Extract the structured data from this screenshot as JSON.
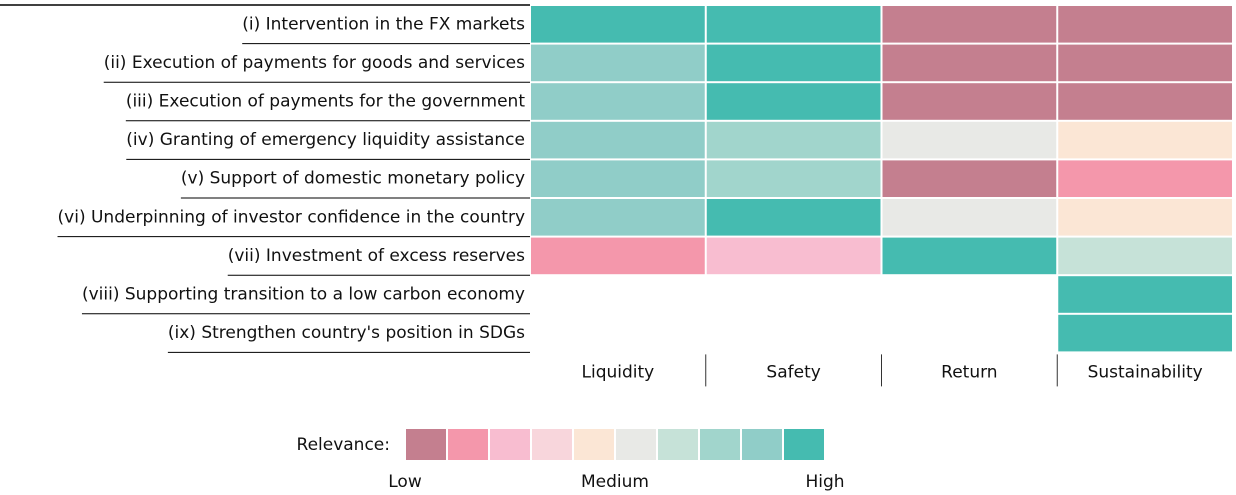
{
  "chart_data": {
    "type": "heatmap",
    "rows": [
      "(i) Intervention in the FX markets",
      "(ii) Execution of payments for goods and services",
      "(iii) Execution of payments for the government",
      "(iv) Granting of emergency liquidity assistance",
      "(v) Support of domestic monetary policy",
      "(vi) Underpinning of investor confidence in the country",
      "(vii) Investment of excess reserves",
      "(viii) Supporting transition to a low carbon economy",
      "(ix) Strengthen country's position in SDGs"
    ],
    "columns": [
      "Liquidity",
      "Safety",
      "Return",
      "Sustainability"
    ],
    "values": [
      [
        10,
        10,
        1,
        1
      ],
      [
        9,
        10,
        1,
        1
      ],
      [
        9,
        10,
        1,
        1
      ],
      [
        9,
        8,
        6,
        5
      ],
      [
        9,
        8,
        1,
        2
      ],
      [
        9,
        10,
        6,
        5
      ],
      [
        2,
        3,
        10,
        7
      ],
      [
        null,
        null,
        null,
        10
      ],
      [
        null,
        null,
        null,
        10
      ]
    ],
    "legend_title": "Relevance:",
    "levels": [
      1,
      2,
      3,
      4,
      5,
      6,
      7,
      8,
      9,
      10
    ],
    "colors": [
      "#c47f8f",
      "#f497ab",
      "#f8bdd0",
      "#f8d6dc",
      "#fbe6d5",
      "#e8e9e6",
      "#c6e2d8",
      "#a1d5cc",
      "#90cdc8",
      "#45bbb0"
    ],
    "legend_ticks": [
      {
        "value": 1,
        "label": "Low"
      },
      {
        "value": 5.5,
        "label": "Medium"
      },
      {
        "value": 10,
        "label": "High"
      }
    ]
  }
}
